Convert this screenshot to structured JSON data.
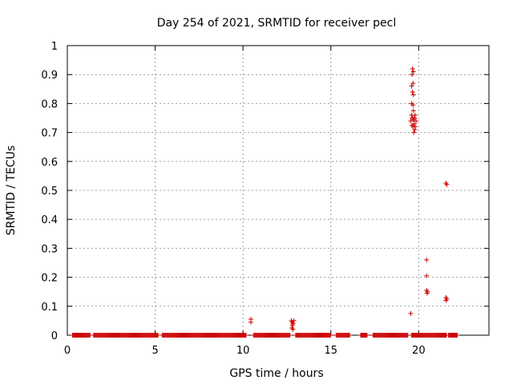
{
  "chart_data": {
    "type": "scatter",
    "title": "Day 254 of 2021, SRMTID for receiver pecl",
    "xlabel": "GPS time / hours",
    "ylabel": "SRMTID / TECUs",
    "xlim": [
      0,
      24
    ],
    "ylim": [
      0,
      1
    ],
    "xticks": [
      0,
      5,
      10,
      15,
      20
    ],
    "yticks": [
      0,
      0.1,
      0.2,
      0.3,
      0.4,
      0.5,
      0.6,
      0.7,
      0.8,
      0.9,
      1
    ],
    "xtick_labels": [
      "0",
      "5",
      "10",
      "15",
      "20"
    ],
    "ytick_labels": [
      "0",
      "0.1",
      "0.2",
      "0.3",
      "0.4",
      "0.5",
      "0.6",
      "0.7",
      "0.8",
      "0.9",
      "1"
    ],
    "grid": true,
    "marker": "+",
    "color": "#cc0000",
    "zero_baseline_ranges": [
      [
        0.3,
        1.3
      ],
      [
        1.5,
        3.0
      ],
      [
        3.0,
        5.2
      ],
      [
        5.4,
        10.2
      ],
      [
        10.6,
        12.7
      ],
      [
        13.0,
        15.0
      ],
      [
        15.3,
        16.1
      ],
      [
        16.7,
        17.1
      ],
      [
        17.4,
        19.4
      ],
      [
        19.6,
        21.6
      ],
      [
        21.7,
        22.2
      ]
    ],
    "points": [
      [
        10.45,
        0.045
      ],
      [
        10.45,
        0.055
      ],
      [
        12.75,
        0.05
      ],
      [
        12.8,
        0.045
      ],
      [
        12.85,
        0.04
      ],
      [
        12.9,
        0.05
      ],
      [
        12.78,
        0.025
      ],
      [
        12.85,
        0.02
      ],
      [
        12.82,
        0.035
      ],
      [
        19.55,
        0.075
      ],
      [
        19.65,
        0.92
      ],
      [
        19.7,
        0.91
      ],
      [
        19.62,
        0.9
      ],
      [
        19.68,
        0.87
      ],
      [
        19.6,
        0.86
      ],
      [
        19.65,
        0.84
      ],
      [
        19.7,
        0.83
      ],
      [
        19.6,
        0.8
      ],
      [
        19.68,
        0.795
      ],
      [
        19.6,
        0.76
      ],
      [
        19.65,
        0.75
      ],
      [
        19.55,
        0.74
      ],
      [
        19.7,
        0.745
      ],
      [
        19.75,
        0.73
      ],
      [
        19.62,
        0.725
      ],
      [
        19.68,
        0.72
      ],
      [
        19.78,
        0.71
      ],
      [
        19.72,
        0.7
      ],
      [
        19.8,
        0.76
      ],
      [
        19.85,
        0.74
      ],
      [
        19.8,
        0.72
      ],
      [
        19.75,
        0.75
      ],
      [
        19.7,
        0.775
      ],
      [
        20.45,
        0.26
      ],
      [
        20.45,
        0.205
      ],
      [
        20.45,
        0.155
      ],
      [
        20.5,
        0.15
      ],
      [
        20.48,
        0.145
      ],
      [
        21.55,
        0.525
      ],
      [
        21.6,
        0.52
      ],
      [
        21.55,
        0.13
      ],
      [
        21.6,
        0.125
      ],
      [
        21.55,
        0.12
      ]
    ]
  }
}
